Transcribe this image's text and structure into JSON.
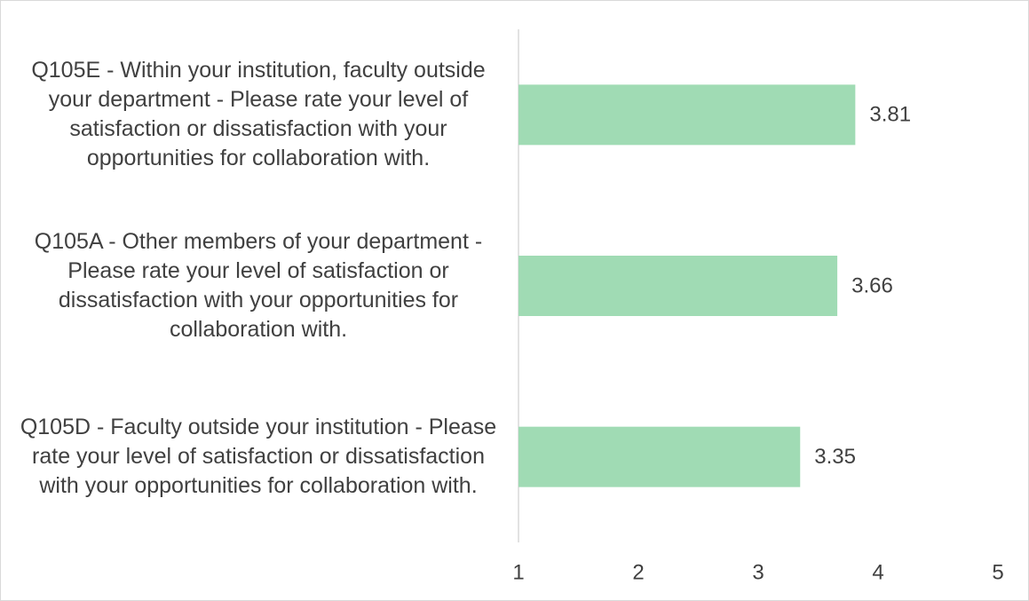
{
  "chart_data": {
    "type": "barh",
    "categories": [
      "Q105E - Within your institution, faculty outside your department - Please rate your level of satisfaction or dissatisfaction with your opportunities for collaboration with.",
      "Q105A - Other members of your department - Please rate your level of satisfaction or dissatisfaction with your opportunities for collaboration with.",
      "Q105D - Faculty outside your institution - Please rate your level of satisfaction or dissatisfaction with your opportunities for collaboration with."
    ],
    "values": [
      3.81,
      3.66,
      3.35
    ],
    "color": "#a0dbb4",
    "xlim": [
      1,
      5
    ],
    "xticks": [
      1,
      2,
      3,
      4,
      5
    ],
    "grid": false
  }
}
